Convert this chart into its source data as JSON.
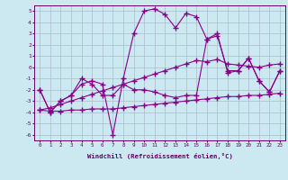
{
  "xlabel": "Windchill (Refroidissement éolien,°C)",
  "hours": [
    0,
    1,
    2,
    3,
    4,
    5,
    6,
    7,
    8,
    9,
    10,
    11,
    12,
    13,
    14,
    15,
    16,
    17,
    18,
    19,
    20,
    21,
    22,
    23
  ],
  "line_main": [
    -2.0,
    -4.0,
    -3.0,
    -2.5,
    -1.5,
    -1.2,
    -1.5,
    -6.0,
    -1.0,
    3.0,
    5.0,
    5.2,
    4.7,
    3.5,
    4.8,
    4.5,
    2.5,
    2.8,
    -0.3,
    -0.3,
    0.8,
    -1.2,
    -2.2,
    -0.3
  ],
  "line_mid": [
    -2.0,
    -4.0,
    -3.0,
    -2.5,
    -1.0,
    -1.5,
    -2.5,
    -2.5,
    -1.5,
    -2.0,
    -2.0,
    -2.2,
    -2.5,
    -2.7,
    -2.5,
    -2.5,
    2.5,
    3.0,
    -0.5,
    -0.3,
    0.8,
    -1.2,
    -2.2,
    -0.3
  ],
  "line_diag": [
    -3.8,
    -3.6,
    -3.3,
    -3.0,
    -2.7,
    -2.4,
    -2.1,
    -1.8,
    -1.5,
    -1.2,
    -0.9,
    -0.6,
    -0.3,
    0.0,
    0.3,
    0.6,
    0.5,
    0.7,
    0.3,
    0.2,
    0.1,
    0.0,
    0.2,
    0.3
  ],
  "line_flat": [
    -3.8,
    -3.9,
    -3.9,
    -3.8,
    -3.8,
    -3.7,
    -3.7,
    -3.7,
    -3.6,
    -3.5,
    -3.4,
    -3.3,
    -3.2,
    -3.1,
    -3.0,
    -2.9,
    -2.8,
    -2.7,
    -2.6,
    -2.6,
    -2.5,
    -2.5,
    -2.4,
    -2.3
  ],
  "bg_color": "#cce8f0",
  "grid_color": "#aabbcc",
  "line_color": "#880088",
  "ylim": [
    -6.5,
    5.5
  ],
  "xlim": [
    -0.5,
    23.5
  ]
}
